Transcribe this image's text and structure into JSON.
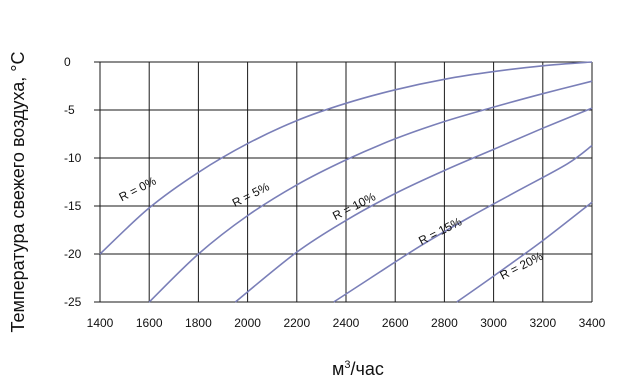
{
  "chart_data": {
    "type": "line",
    "xlabel_base": "м",
    "xlabel_sup": "3",
    "xlabel_tail": "/час",
    "ylabel": "Температура свежего воздуха, °С",
    "xlim": [
      1400,
      3400
    ],
    "ylim": [
      -25,
      0
    ],
    "xticks": [
      "1400",
      "1600",
      "1800",
      "2000",
      "2200",
      "2400",
      "2600",
      "2800",
      "3000",
      "3200",
      "3400"
    ],
    "yticks": [
      "0",
      "-5",
      "-10",
      "-15",
      "-20",
      "-25"
    ],
    "grid": true,
    "colors": {
      "grid": "#1a1a1a",
      "curve": "#7a7fb8",
      "text": "#111111"
    },
    "series": [
      {
        "name": "R = 0%",
        "x": [
          1400,
          1600,
          1800,
          2000,
          2200,
          2400,
          2600,
          2800,
          3000,
          3200,
          3400
        ],
        "y": [
          -20,
          -15.2,
          -11.5,
          -8.5,
          -6.1,
          -4.3,
          -2.9,
          -1.8,
          -1.0,
          -0.4,
          0
        ]
      },
      {
        "name": "R = 5%",
        "x": [
          1600,
          1800,
          2000,
          2200,
          2400,
          2600,
          2800,
          3000,
          3200,
          3400
        ],
        "y": [
          -25,
          -20,
          -16,
          -12.8,
          -10.2,
          -8.0,
          -6.2,
          -4.7,
          -3.3,
          -2.0
        ]
      },
      {
        "name": "R = 10%",
        "x": [
          1950,
          2200,
          2400,
          2600,
          2800,
          3000,
          3200,
          3400
        ],
        "y": [
          -25,
          -19.8,
          -16.5,
          -13.7,
          -11.3,
          -9.1,
          -6.9,
          -4.8
        ]
      },
      {
        "name": "R = 15%",
        "x": [
          2350,
          2500,
          2700,
          2900,
          3100,
          3300,
          3400
        ],
        "y": [
          -25,
          -22.5,
          -19.2,
          -16.2,
          -13.4,
          -10.6,
          -8.7
        ]
      },
      {
        "name": "R = 20%",
        "x": [
          2850,
          3000,
          3200,
          3400
        ],
        "y": [
          -25,
          -22.3,
          -18.6,
          -14.6
        ]
      }
    ],
    "curve_labels": [
      {
        "text": "R = 0%",
        "x": 1560,
        "y": -13.6
      },
      {
        "text": "R = 5%",
        "x": 2020,
        "y": -14.2
      },
      {
        "text": "R = 10%",
        "x": 2440,
        "y": -15.4
      },
      {
        "text": "R = 15%",
        "x": 2790,
        "y": -18.0
      },
      {
        "text": "R = 20%",
        "x": 3120,
        "y": -21.6
      }
    ]
  }
}
